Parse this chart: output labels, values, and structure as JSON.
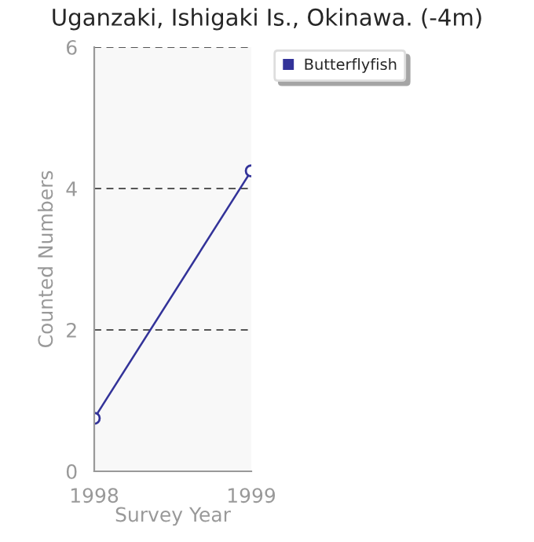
{
  "chart_data": {
    "type": "line",
    "title": "Uganzaki, Ishigaki Is., Okinawa. (-4m)",
    "xlabel": "Survey Year",
    "ylabel": "Counted Numbers",
    "x": [
      1998,
      1999
    ],
    "xlim": [
      1998,
      1999
    ],
    "xticks": [
      1998,
      1999
    ],
    "ylim": [
      0,
      6
    ],
    "yticks": [
      0,
      2,
      4,
      6
    ],
    "series": [
      {
        "name": "Butterflyfish",
        "color": "#333399",
        "values": [
          0.75,
          4.25
        ]
      }
    ],
    "grid": "y",
    "legend": "top right",
    "marker": "circle",
    "line_style": "solid"
  }
}
